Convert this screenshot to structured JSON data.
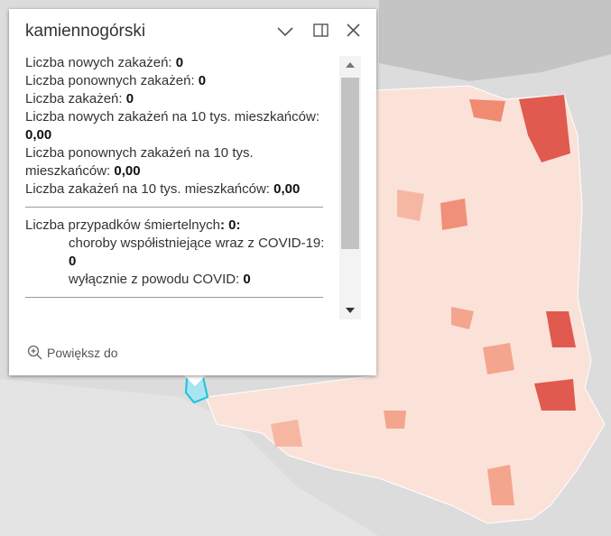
{
  "popup": {
    "title": "kamiennogórski",
    "fields": [
      {
        "label": "Liczba nowych zakażeń:",
        "value": "0"
      },
      {
        "label": "Liczba ponownych zakażeń:",
        "value": "0"
      },
      {
        "label": "Liczba zakażeń:",
        "value": "0"
      },
      {
        "label": "Liczba nowych zakażeń na 10 tys. mieszkańców:",
        "value": "0,00"
      },
      {
        "label": "Liczba ponownych zakażeń na 10 tys. mieszkańców:",
        "value": "0,00"
      },
      {
        "label": "Liczba zakażeń na 10 tys. mieszkańców:",
        "value": "0,00"
      }
    ],
    "deaths": {
      "label": "Liczba przypadków śmiertelnych",
      "value": ": 0:",
      "lines": [
        {
          "label": "choroby współistniejące wraz z COVID-19:",
          "value": "0"
        },
        {
          "label": "wyłącznie z powodu COVID:",
          "value": "0"
        }
      ]
    },
    "action": "Powiększ do"
  }
}
